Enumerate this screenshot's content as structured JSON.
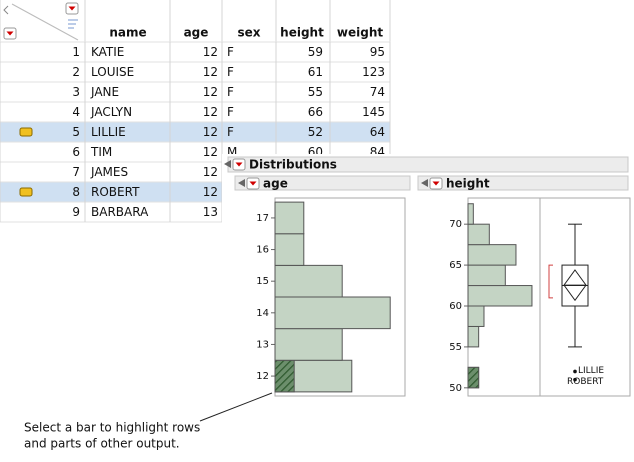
{
  "table": {
    "columns": [
      "name",
      "age",
      "sex",
      "height",
      "weight"
    ],
    "rows": [
      [
        1,
        "KATIE",
        12,
        "F",
        59,
        95
      ],
      [
        2,
        "LOUISE",
        12,
        "F",
        61,
        123
      ],
      [
        3,
        "JANE",
        12,
        "F",
        55,
        74
      ],
      [
        4,
        "JACLYN",
        12,
        "F",
        66,
        145
      ],
      [
        5,
        "LILLIE",
        12,
        "F",
        52,
        64
      ],
      [
        6,
        "TIM",
        12,
        "M",
        60,
        84
      ],
      [
        7,
        "JAMES",
        12
      ],
      [
        8,
        "ROBERT",
        12
      ],
      [
        9,
        "BARBARA",
        13
      ]
    ],
    "selected": [
      false,
      false,
      false,
      false,
      true,
      false,
      false,
      true,
      false
    ]
  },
  "distributions": {
    "title": "Distributions",
    "age": {
      "label": "age",
      "ylim": [
        11.37,
        17.63
      ],
      "yticks": [
        12,
        13,
        14,
        15,
        16,
        17
      ],
      "bins": [
        11.5,
        12.5,
        13.5,
        14.5,
        15.5,
        16.5,
        17.5
      ],
      "counts": [
        8,
        7,
        12,
        7,
        3,
        3
      ],
      "selected_counts": [
        2,
        0,
        0,
        0,
        0,
        0
      ],
      "color": "#c4d4c4"
    },
    "height": {
      "label": "height",
      "ylim": [
        49,
        73.2
      ],
      "yticks": [
        50,
        55,
        60,
        65,
        70
      ],
      "bins": [
        50,
        52.5,
        55,
        57.5,
        60,
        62.5,
        65,
        67.5,
        70,
        72.5
      ],
      "counts": [
        2,
        0,
        2,
        3,
        12,
        7,
        9,
        4,
        1
      ],
      "selected_counts": [
        2,
        0,
        0,
        0,
        0,
        0,
        0,
        0,
        0
      ],
      "color": "#c4d4c4",
      "box": {
        "whisker_low": 55,
        "q1": 60,
        "median": 62.5,
        "q3": 65,
        "whisker_high": 70,
        "mean": 62.55,
        "mean_lower": 60.7,
        "mean_upper": 64.4,
        "shortest_half": [
          61,
          65
        ]
      },
      "outliers": [
        {
          "label": "LILLIE",
          "value": 52
        },
        {
          "label": "ROBERT",
          "value": 51
        }
      ]
    }
  },
  "annotation": [
    "Select a bar to highlight rows",
    "and parts of other output."
  ]
}
